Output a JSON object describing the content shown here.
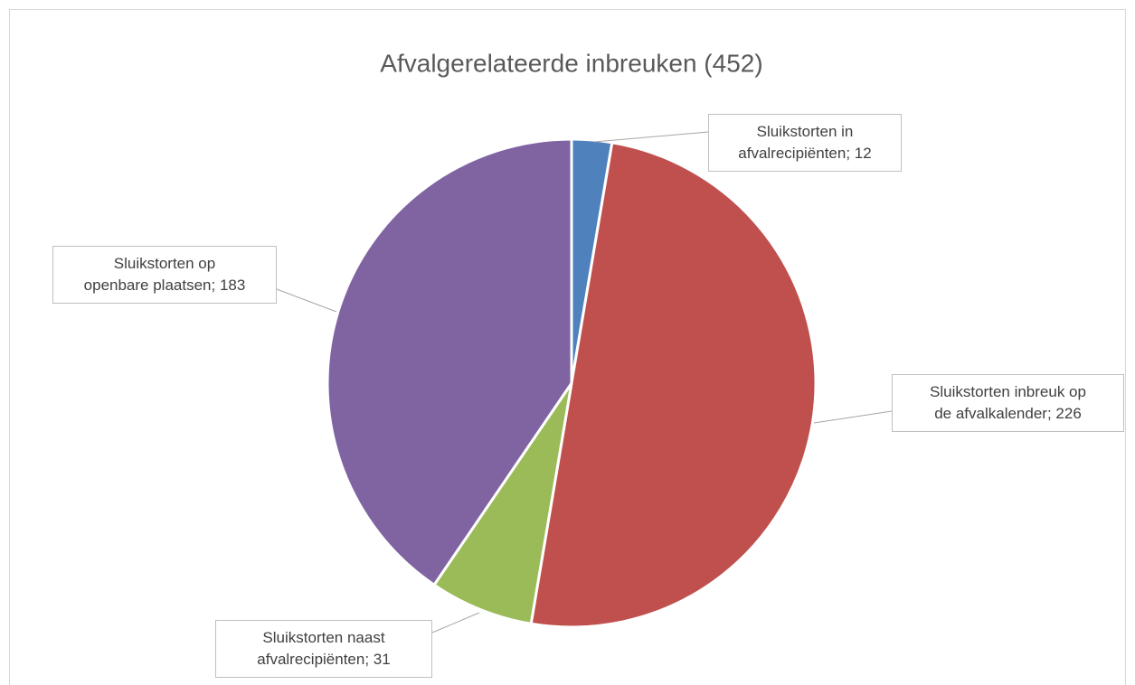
{
  "chart_data": {
    "type": "pie",
    "title": "Afvalgerelateerde inbreuken (452)",
    "categories": [
      "Sluikstorten in afvalrecipiënten",
      "Sluikstorten inbreuk op de afvalkalender",
      "Sluikstorten naast afvalrecipiënten",
      "Sluikstorten op openbare plaatsen"
    ],
    "values": [
      12,
      226,
      31,
      183
    ],
    "colors": [
      "#4f81bd",
      "#c0504d",
      "#9bbb59",
      "#8064a2"
    ],
    "label_separator": "; "
  }
}
